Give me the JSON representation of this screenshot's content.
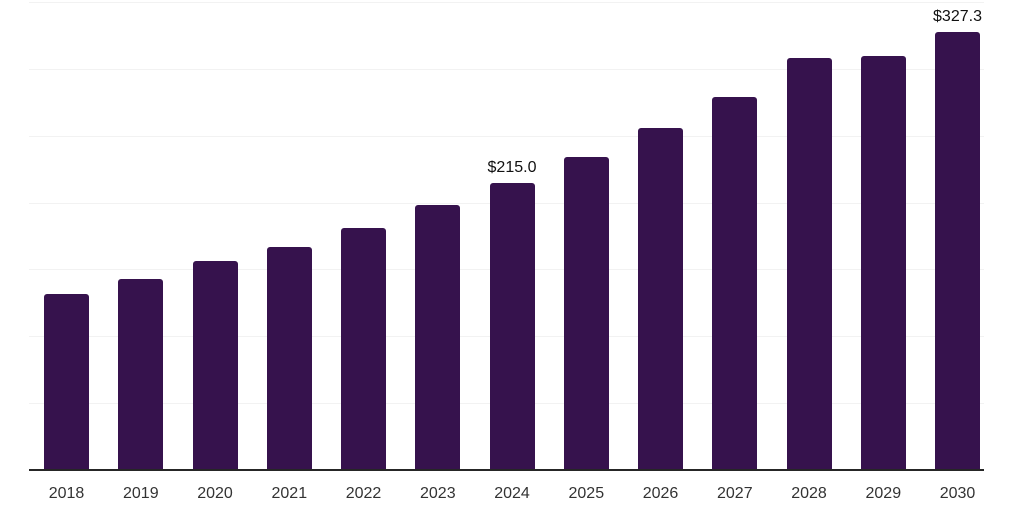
{
  "chart_data": {
    "type": "bar",
    "title": "",
    "xlabel": "",
    "ylabel": "",
    "categories": [
      "2018",
      "2019",
      "2020",
      "2021",
      "2022",
      "2023",
      "2024",
      "2025",
      "2026",
      "2027",
      "2028",
      "2029",
      "2030"
    ],
    "values": [
      132,
      143,
      156,
      167,
      181,
      198,
      215.0,
      234,
      256,
      279,
      308,
      310,
      327.3
    ],
    "data_labels": {
      "2024": "$215.0",
      "2030": "$327.3"
    },
    "ylim": [
      0,
      350
    ],
    "gridline_step": 50,
    "grid": "horizontal",
    "legend_position": "none",
    "y_axis_tick_labels_visible": false,
    "colors": {
      "bar": "#36124d",
      "gridline": "#f2f2f2",
      "axis_line": "#262626",
      "tick_label": "#333333",
      "data_label": "#111111"
    }
  }
}
